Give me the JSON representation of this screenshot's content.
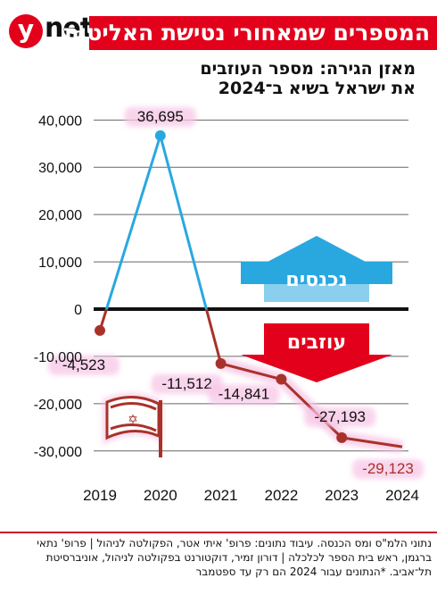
{
  "header": {
    "logo": "ynet",
    "title": "המספרים שמאחורי נטישת האליטות"
  },
  "colors": {
    "accent": "#e3001b",
    "series_line_up": "#29a8e0",
    "series_line_down": "#a8322a",
    "arrow_in": "#29a8e0",
    "arrow_out": "#e3001b",
    "highlight": "#f7c6e6"
  },
  "chart_data": {
    "type": "line",
    "title": "מאזן הגירה: מספר העוזבים",
    "subtitle": "את ישראל בשיא ב־2024",
    "x": [
      "2019",
      "2020",
      "2021",
      "2022",
      "2023",
      "2024"
    ],
    "series": [
      {
        "values": [
          -4523,
          36695,
          -11512,
          -14841,
          -27193,
          -29123
        ]
      }
    ],
    "data_labels": [
      "-4,523",
      "36,695",
      "-11,512",
      "-14,841",
      "-27,193",
      "-29,123"
    ],
    "ylim": [
      -30000,
      40000
    ],
    "yticks": [
      40000,
      30000,
      20000,
      10000,
      0,
      -10000,
      -20000,
      -30000
    ],
    "ytick_labels": [
      "40,000",
      "30,000",
      "20,000",
      "10,000",
      "0",
      "-10,000",
      "-20,000",
      "-30,000"
    ],
    "grid": true,
    "annotations": {
      "arrow_up": "נכנסים",
      "arrow_down": "עוזבים"
    },
    "icon": "israeli-flag-icon"
  },
  "footer": {
    "text": "נתוני הלמ\"ס ומס הכנסה. עיבוד נתונים: פרופ' איתי אטר, הפקולטה לניהול | פרופ' נתאי ברגמן, ראש בית הספר לכלכלה | דורון זמיר, דוקטורנט בפקולטה לניהול, אוניברסיטת תל־אביב. *הנתונים עבור 2024 הם רק עד ספטמבר"
  }
}
